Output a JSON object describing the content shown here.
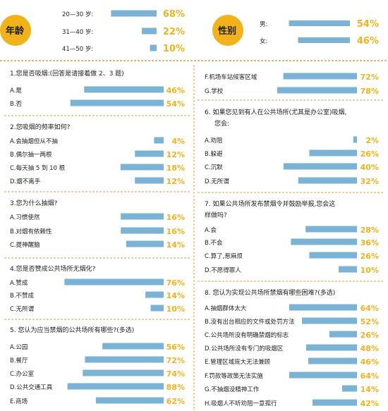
{
  "colors": {
    "bar": "#7ab3d6",
    "pct": "#f2b21b",
    "badge": "#f2b21b",
    "divider": "#d0a14a"
  },
  "chart_data": [
    {
      "type": "bar",
      "title": "年龄",
      "categories": [
        "20—30 岁:",
        "31—40 岁:",
        "41—50 岁:"
      ],
      "values": [
        68,
        22,
        10
      ],
      "labels": [
        "68%",
        "22%",
        "10%"
      ]
    },
    {
      "type": "bar",
      "title": "性别",
      "categories": [
        "男:",
        "女:"
      ],
      "values": [
        54,
        46
      ],
      "labels": [
        "54%",
        "46%"
      ]
    },
    {
      "type": "bar",
      "title": "1.您是否吸烟:(回答是请接着做 2、3 题)",
      "categories": [
        "A.是",
        "B.否"
      ],
      "values": [
        46,
        54
      ],
      "labels": [
        "46%",
        "54%"
      ]
    },
    {
      "type": "bar",
      "title": "2.您吸烟的频率如何?",
      "categories": [
        "A.会抽烟但从不抽",
        "B.偶尔抽一两根",
        "C.每天抽 5 到 10 根",
        "D.烟不离手"
      ],
      "values": [
        4,
        12,
        18,
        12
      ],
      "labels": [
        "4%",
        "12%",
        "18%",
        "12%"
      ]
    },
    {
      "type": "bar",
      "title": "3.您为什么抽烟?",
      "categories": [
        "A.习惯使然",
        "B.对烟有依赖性",
        "C.提神醒脑"
      ],
      "values": [
        16,
        16,
        14
      ],
      "labels": [
        "16%",
        "16%",
        "14%"
      ]
    },
    {
      "type": "bar",
      "title": "4.您是否赞成公共场所无烟化?",
      "categories": [
        "A.赞成",
        "B.不赞成",
        "C.无所谓"
      ],
      "values": [
        76,
        14,
        10
      ],
      "labels": [
        "76%",
        "14%",
        "10%"
      ]
    },
    {
      "type": "bar",
      "title": "5. 您认为应当禁烟的公共场所有哪些?(多选)",
      "categories": [
        "A.公园",
        "B.餐厅",
        "C.办公室",
        "D.公共交通工具",
        "E.商场"
      ],
      "values": [
        56,
        72,
        74,
        88,
        62
      ],
      "labels": [
        "56%",
        "72%",
        "74%",
        "88%",
        "62%"
      ]
    },
    {
      "type": "bar",
      "title": "",
      "categories": [
        "F.机场车站候客区域",
        "G.学校"
      ],
      "values": [
        72,
        78
      ],
      "labels": [
        "72%",
        "78%"
      ]
    },
    {
      "type": "bar",
      "title": "6. 如果您见到有人在公共场所(尤其是办公室)吸烟,您会:",
      "categories": [
        "A.劝阻",
        "B.躲避",
        "C.沉默",
        "D.无所谓"
      ],
      "values": [
        2,
        26,
        40,
        32
      ],
      "labels": [
        "2%",
        "26%",
        "40%",
        "32%"
      ]
    },
    {
      "type": "bar",
      "title": "7. 如果公共场所发布禁烟令并鼓励举报,您会这样做吗?",
      "categories": [
        "A.会",
        "B.不会",
        "C.算了,惹麻烦",
        "D.不愿得罪人"
      ],
      "values": [
        28,
        36,
        26,
        10
      ],
      "labels": [
        "28%",
        "36%",
        "26%",
        "10%"
      ]
    },
    {
      "type": "bar",
      "title": "8. 您认为实现公共场所禁烟有哪些困难?(多选)",
      "categories": [
        "A.抽烟群体太大",
        "B.没有出台相应的文件或处罚方法",
        "C.公共场所没有明确禁烟的标志",
        "D.公共场所没有专门的吸烟区",
        "E.管理区域庞大无法兼顾",
        "F.罚款等政策无法实施",
        "G.不抽烟没精神工作",
        "H.吸烟人不听劝阻一意孤行"
      ],
      "values": [
        64,
        52,
        26,
        48,
        46,
        64,
        14,
        42
      ],
      "labels": [
        "64%",
        "52%",
        "26%",
        "48%",
        "46%",
        "64%",
        "14%",
        "42%"
      ]
    }
  ]
}
